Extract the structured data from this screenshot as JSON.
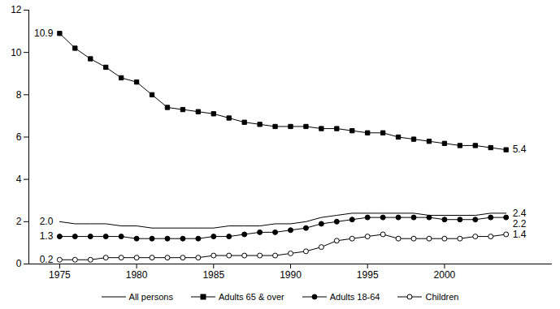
{
  "chart_data": {
    "type": "line",
    "x": [
      1975,
      1976,
      1977,
      1978,
      1979,
      1980,
      1981,
      1982,
      1983,
      1984,
      1985,
      1986,
      1987,
      1988,
      1989,
      1990,
      1991,
      1992,
      1993,
      1994,
      1995,
      1996,
      1997,
      1998,
      1999,
      2000,
      2001,
      2002,
      2003,
      2004
    ],
    "series": [
      {
        "name": "All persons",
        "color": "#000000",
        "marker": "none",
        "line_style": "solid",
        "values": [
          2.0,
          1.9,
          1.9,
          1.9,
          1.8,
          1.8,
          1.7,
          1.7,
          1.7,
          1.7,
          1.7,
          1.8,
          1.8,
          1.8,
          1.9,
          1.9,
          2.0,
          2.2,
          2.3,
          2.4,
          2.4,
          2.4,
          2.4,
          2.4,
          2.3,
          2.3,
          2.3,
          2.3,
          2.4,
          2.4
        ]
      },
      {
        "name": "Adults 65 & over",
        "color": "#000000",
        "marker": "square",
        "line_style": "solid",
        "values": [
          10.9,
          10.2,
          9.7,
          9.3,
          8.8,
          8.6,
          8.0,
          7.4,
          7.3,
          7.2,
          7.1,
          6.9,
          6.7,
          6.6,
          6.5,
          6.5,
          6.5,
          6.4,
          6.4,
          6.3,
          6.2,
          6.2,
          6.0,
          5.9,
          5.8,
          5.7,
          5.6,
          5.6,
          5.5,
          5.4
        ]
      },
      {
        "name": "Adults 18-64",
        "color": "#000000",
        "marker": "circle",
        "line_style": "solid",
        "values": [
          1.3,
          1.3,
          1.3,
          1.3,
          1.3,
          1.2,
          1.2,
          1.2,
          1.2,
          1.2,
          1.3,
          1.3,
          1.4,
          1.5,
          1.5,
          1.6,
          1.7,
          1.9,
          2.0,
          2.1,
          2.2,
          2.2,
          2.2,
          2.2,
          2.2,
          2.1,
          2.1,
          2.1,
          2.2,
          2.2
        ]
      },
      {
        "name": "Children",
        "color": "#000000",
        "marker": "open circle",
        "line_style": "solid",
        "values": [
          0.2,
          0.2,
          0.2,
          0.3,
          0.3,
          0.3,
          0.3,
          0.3,
          0.3,
          0.3,
          0.4,
          0.4,
          0.4,
          0.4,
          0.4,
          0.5,
          0.6,
          0.8,
          1.1,
          1.2,
          1.3,
          1.4,
          1.2,
          1.2,
          1.2,
          1.2,
          1.2,
          1.3,
          1.3,
          1.4
        ]
      }
    ],
    "annotations": [
      {
        "text": "10.9",
        "series": "Adults 65 & over",
        "x": 1975
      },
      {
        "text": "2.0",
        "series": "All persons",
        "x": 1975
      },
      {
        "text": "1.3",
        "series": "Adults 18-64",
        "x": 1975
      },
      {
        "text": "0.2",
        "series": "Children",
        "x": 1975
      },
      {
        "text": "5.4",
        "series": "Adults 65 & over",
        "x": 2004
      },
      {
        "text": "2.4",
        "series": "All persons",
        "x": 2004
      },
      {
        "text": "2.2",
        "series": "Adults 18-64",
        "x": 2004
      },
      {
        "text": "1.4",
        "series": "Children",
        "x": 2004
      }
    ],
    "xlim": [
      1973,
      2007
    ],
    "xticks": [
      1975,
      1980,
      1985,
      1990,
      1995,
      2000
    ],
    "ylim": [
      0,
      12
    ],
    "yticks": [
      0,
      2,
      4,
      6,
      8,
      10,
      12
    ],
    "grid": false,
    "legend": "bottom"
  }
}
